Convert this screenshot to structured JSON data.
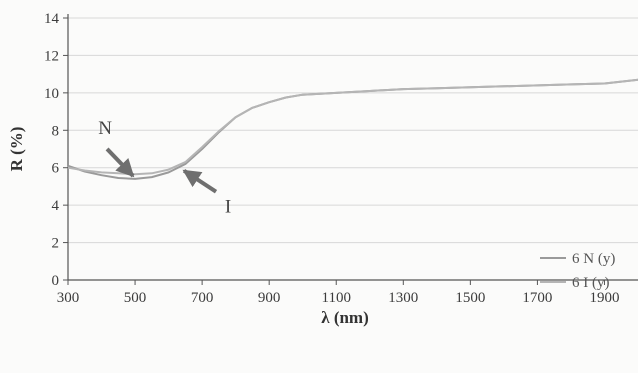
{
  "chart_data": {
    "type": "line",
    "title": "",
    "xlabel": "λ (nm)",
    "ylabel": "R (%)",
    "xlim": [
      300,
      2000
    ],
    "ylim": [
      0,
      14
    ],
    "x_ticks": [
      300,
      500,
      700,
      900,
      1100,
      1300,
      1500,
      1700,
      1900
    ],
    "y_ticks": [
      0,
      2,
      4,
      6,
      8,
      10,
      12,
      14
    ],
    "grid": "horizontal",
    "legend_position": "bottom-right",
    "series": [
      {
        "name": "6 N (y)",
        "color": "#9a9a9a",
        "x": [
          300,
          350,
          400,
          450,
          500,
          550,
          600,
          650,
          700,
          750,
          800,
          850,
          900,
          950,
          1000,
          1100,
          1200,
          1300,
          1400,
          1500,
          1600,
          1700,
          1800,
          1900,
          2000
        ],
        "y": [
          6.1,
          5.8,
          5.6,
          5.45,
          5.4,
          5.5,
          5.75,
          6.2,
          7.0,
          7.9,
          8.7,
          9.2,
          9.5,
          9.75,
          9.9,
          10.0,
          10.1,
          10.2,
          10.25,
          10.3,
          10.35,
          10.4,
          10.45,
          10.5,
          10.7
        ]
      },
      {
        "name": "6 I (y)",
        "color": "#b5b5b5",
        "x": [
          300,
          350,
          400,
          450,
          500,
          550,
          600,
          650,
          700,
          750,
          800,
          850,
          900,
          950,
          1000,
          1100,
          1200,
          1300,
          1400,
          1500,
          1600,
          1700,
          1800,
          1900,
          2000
        ],
        "y": [
          6.0,
          5.85,
          5.75,
          5.7,
          5.65,
          5.7,
          5.9,
          6.3,
          7.1,
          7.95,
          8.7,
          9.2,
          9.5,
          9.75,
          9.9,
          10.0,
          10.1,
          10.2,
          10.25,
          10.3,
          10.35,
          10.4,
          10.45,
          10.5,
          10.7
        ]
      }
    ],
    "annotations": [
      {
        "text": "N",
        "x": 500,
        "y": 5.4
      },
      {
        "text": "I",
        "x": 640,
        "y": 6.0
      }
    ],
    "colors": {
      "axis": "#555555",
      "grid": "#d8d8d8",
      "arrow": "#6f6f6f"
    }
  }
}
